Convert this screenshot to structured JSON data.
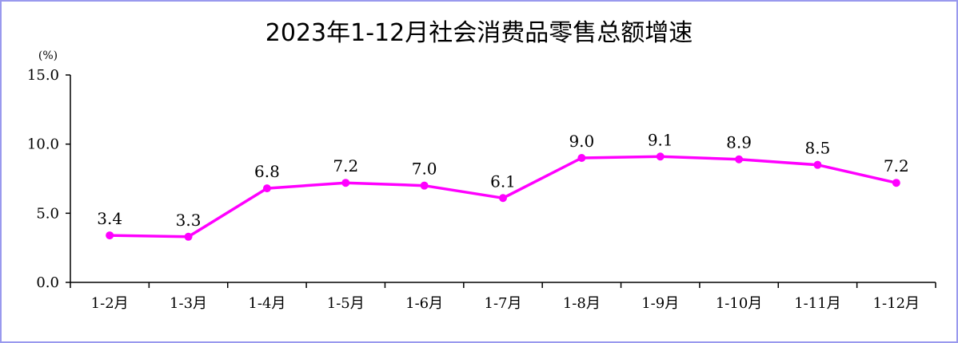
{
  "chart_data": {
    "type": "line",
    "title": "2023年1-12月社会消费品零售总额增速",
    "unit": "(%)",
    "categories": [
      "1-2月",
      "1-3月",
      "1-4月",
      "1-5月",
      "1-6月",
      "1-7月",
      "1-8月",
      "1-9月",
      "1-10月",
      "1-11月",
      "1-12月"
    ],
    "series": [
      {
        "values": [
          3.4,
          3.3,
          6.8,
          7.2,
          7.0,
          6.1,
          9.0,
          9.1,
          8.9,
          8.5,
          7.2
        ]
      }
    ],
    "data_labels": [
      "3.4",
      "3.3",
      "6.8",
      "7.2",
      "7.0",
      "6.1",
      "9.0",
      "9.1",
      "8.9",
      "8.5",
      "7.2"
    ],
    "ylim": [
      0,
      15
    ],
    "yticks": [
      0,
      5,
      10,
      15
    ],
    "ytick_labels": [
      "0.0",
      "5.0",
      "10.0",
      "15.0"
    ],
    "grid": false,
    "legend": "none",
    "colors": {
      "line": "#ff00ff",
      "axis": "#000000",
      "border": "#9999ee"
    }
  }
}
